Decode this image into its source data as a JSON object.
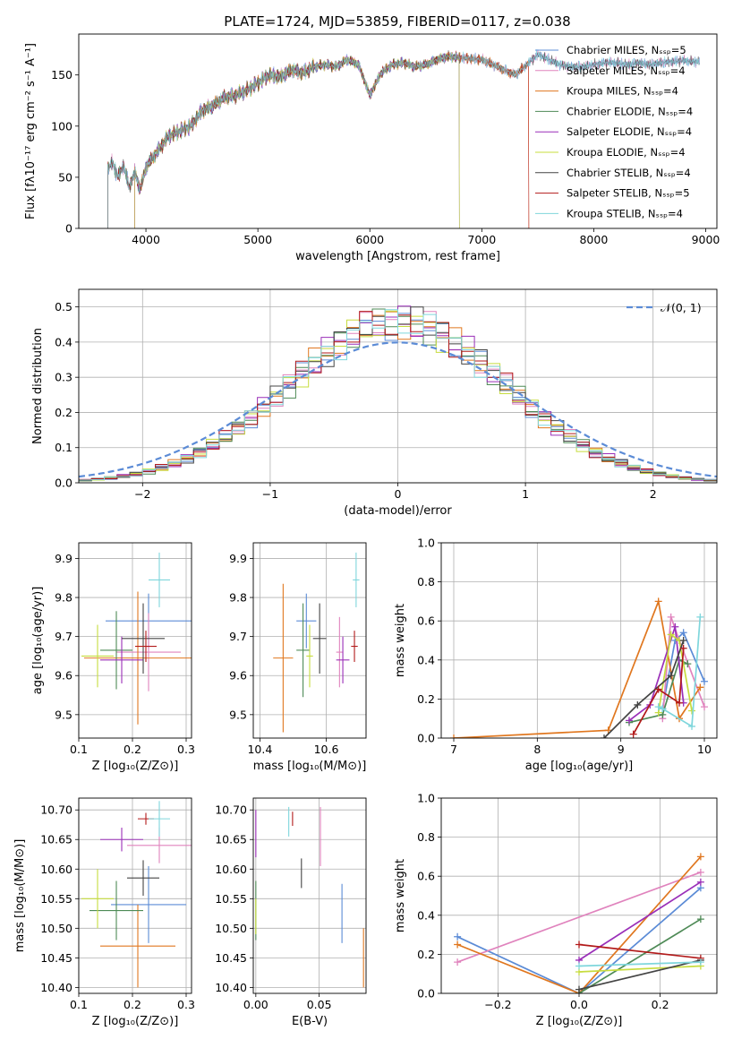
{
  "figure": {
    "title": "PLATE=1724, MJD=53859, FIBERID=0117, z=0.038"
  },
  "chart_data": [
    {
      "id": "spectrum",
      "type": "line",
      "xlabel": "wavelength [Angstrom, rest frame]",
      "ylabel": "Flux [fλ10⁻¹⁷ erg cm⁻² s⁻¹ A⁻¹]",
      "xlim": [
        3400,
        9100
      ],
      "ylim": [
        0,
        190
      ],
      "xticks": [
        4000,
        5000,
        6000,
        7000,
        8000,
        9000
      ],
      "yticks": [
        0,
        50,
        100,
        150
      ],
      "grid": false,
      "legend_position": "right",
      "template": {
        "x": [
          3650,
          3700,
          3750,
          3800,
          3850,
          3900,
          3950,
          4000,
          4100,
          4200,
          4300,
          4400,
          4500,
          4600,
          4700,
          4800,
          4900,
          5000,
          5100,
          5200,
          5300,
          5400,
          5500,
          5600,
          5700,
          5800,
          5900,
          6000,
          6100,
          6200,
          6300,
          6400,
          6500,
          6600,
          6700,
          6800,
          6900,
          7000,
          7100,
          7200,
          7300,
          7400,
          7500,
          7600,
          7700,
          7800,
          7900,
          8000,
          8100,
          8200,
          8300,
          8400,
          8500,
          8600,
          8700,
          8800,
          8900
        ],
        "y": [
          55,
          65,
          50,
          62,
          40,
          55,
          38,
          60,
          75,
          90,
          95,
          100,
          115,
          120,
          128,
          130,
          135,
          142,
          150,
          148,
          155,
          152,
          158,
          160,
          158,
          165,
          160,
          130,
          152,
          160,
          162,
          158,
          160,
          165,
          168,
          167,
          166,
          165,
          160,
          155,
          150,
          160,
          170,
          165,
          160,
          158,
          158,
          160,
          162,
          162,
          160,
          162,
          160,
          162,
          163,
          164,
          163
        ]
      },
      "series": [
        {
          "name": "Chabrier MILES, N_SSP=5",
          "color": "#5b8bd6",
          "x_start": 3660,
          "x_end": 8950
        },
        {
          "name": "Salpeter MILES, N_SSP=4",
          "color": "#e083bd",
          "x_start": 3660,
          "x_end": 8950
        },
        {
          "name": "Kroupa MILES, N_SSP=4",
          "color": "#e0771f",
          "x_start": 3900,
          "x_end": 7420
        },
        {
          "name": "Chabrier ELODIE, N_SSP=4",
          "color": "#4e8a56",
          "x_start": 3660,
          "x_end": 6800
        },
        {
          "name": "Salpeter ELODIE, N_SSP=4",
          "color": "#9a2fb8",
          "x_start": 3900,
          "x_end": 6800
        },
        {
          "name": "Kroupa ELODIE, N_SSP=4",
          "color": "#c7dc3e",
          "x_start": 3900,
          "x_end": 6800
        },
        {
          "name": "Chabrier STELIB, N_SSP=4",
          "color": "#444444",
          "x_start": 3660,
          "x_end": 8950
        },
        {
          "name": "Salpeter STELIB, N_SSP=5",
          "color": "#b21a1a",
          "x_start": 3660,
          "x_end": 7420
        },
        {
          "name": "Kroupa STELIB, N_SSP=4",
          "color": "#7fd6dc",
          "x_start": 3660,
          "x_end": 8950
        }
      ]
    },
    {
      "id": "residual-hist",
      "type": "histogram",
      "xlabel": "(data-model)/error",
      "ylabel": "Normed distribution",
      "xlim": [
        -2.5,
        2.5
      ],
      "ylim": [
        0,
        0.55
      ],
      "xticks": [
        -2,
        -1,
        0,
        1,
        2
      ],
      "yticks": [
        0.0,
        0.1,
        0.2,
        0.3,
        0.4,
        0.5
      ],
      "grid": true,
      "legend_position": "top-right",
      "reference_curve": {
        "name": "𝒩(0, 1)",
        "mean": 0,
        "sigma": 1,
        "color": "#5b8bd6"
      },
      "bin_width": 0.1,
      "bin_start": -2.5,
      "series_colors": [
        "#5b8bd6",
        "#e083bd",
        "#e0771f",
        "#4e8a56",
        "#9a2fb8",
        "#c7dc3e",
        "#444444",
        "#b21a1a",
        "#7fd6dc"
      ]
    },
    {
      "id": "z-age",
      "type": "errorbar",
      "xlabel": "Z [log₁₀(Z/Z⊙)]",
      "ylabel": "age  [log₁₀(age/yr)]",
      "xlim": [
        0.1,
        0.31
      ],
      "ylim": [
        9.44,
        9.94
      ],
      "xticks": [
        0.1,
        0.2,
        0.3
      ],
      "yticks": [
        9.5,
        9.6,
        9.7,
        9.8,
        9.9
      ],
      "grid": true,
      "points": [
        {
          "color": "#5b8bd6",
          "x": 0.23,
          "xerr": 0.08,
          "y": 9.74,
          "yerr": 0.07
        },
        {
          "color": "#e083bd",
          "x": 0.23,
          "xerr": 0.06,
          "y": 9.66,
          "yerr": 0.1
        },
        {
          "color": "#e0771f",
          "x": 0.21,
          "xerr": 0.1,
          "y": 9.645,
          "yerr": 0.17
        },
        {
          "color": "#4e8a56",
          "x": 0.17,
          "xerr": 0.03,
          "y": 9.665,
          "yerr": 0.1
        },
        {
          "color": "#9a2fb8",
          "x": 0.18,
          "xerr": 0.04,
          "y": 9.64,
          "yerr": 0.06
        },
        {
          "color": "#c7dc3e",
          "x": 0.135,
          "xerr": 0.03,
          "y": 9.65,
          "yerr": 0.08
        },
        {
          "color": "#444444",
          "x": 0.22,
          "xerr": 0.04,
          "y": 9.695,
          "yerr": 0.09
        },
        {
          "color": "#b21a1a",
          "x": 0.225,
          "xerr": 0.02,
          "y": 9.675,
          "yerr": 0.04
        },
        {
          "color": "#7fd6dc",
          "x": 0.25,
          "xerr": 0.02,
          "y": 9.845,
          "yerr": 0.07
        }
      ]
    },
    {
      "id": "mass-age",
      "type": "errorbar",
      "xlabel": "mass [log₁₀(M/M⊙)]",
      "ylabel": "",
      "xlim": [
        10.38,
        10.72
      ],
      "ylim": [
        9.44,
        9.94
      ],
      "xticks": [
        10.4,
        10.6
      ],
      "yticks": [
        9.5,
        9.6,
        9.7,
        9.8,
        9.9
      ],
      "grid": true,
      "points": [
        {
          "color": "#5b8bd6",
          "x": 10.54,
          "xerr": 0.03,
          "y": 9.74,
          "yerr": 0.07
        },
        {
          "color": "#e083bd",
          "x": 10.64,
          "xerr": 0.01,
          "y": 9.66,
          "yerr": 0.09
        },
        {
          "color": "#e0771f",
          "x": 10.47,
          "xerr": 0.03,
          "y": 9.645,
          "yerr": 0.19
        },
        {
          "color": "#4e8a56",
          "x": 10.53,
          "xerr": 0.02,
          "y": 9.665,
          "yerr": 0.12
        },
        {
          "color": "#9a2fb8",
          "x": 10.65,
          "xerr": 0.02,
          "y": 9.64,
          "yerr": 0.06
        },
        {
          "color": "#c7dc3e",
          "x": 10.55,
          "xerr": 0.01,
          "y": 9.65,
          "yerr": 0.08
        },
        {
          "color": "#444444",
          "x": 10.58,
          "xerr": 0.02,
          "y": 9.695,
          "yerr": 0.09
        },
        {
          "color": "#b21a1a",
          "x": 10.685,
          "xerr": 0.01,
          "y": 9.675,
          "yerr": 0.04
        },
        {
          "color": "#7fd6dc",
          "x": 10.69,
          "xerr": 0.01,
          "y": 9.845,
          "yerr": 0.07
        }
      ]
    },
    {
      "id": "age-weight",
      "type": "line",
      "xlabel": "age  [log₁₀(age/yr)]",
      "ylabel": "mass weight",
      "xlim": [
        6.85,
        10.15
      ],
      "ylim": [
        0,
        1.0
      ],
      "xticks": [
        7,
        8,
        9,
        10
      ],
      "yticks": [
        0.0,
        0.2,
        0.4,
        0.6,
        0.8,
        1.0
      ],
      "grid": true,
      "series": [
        {
          "color": "#5b8bd6",
          "x": [
            9.5,
            9.65,
            9.75,
            10.0
          ],
          "y": [
            0.15,
            0.5,
            0.54,
            0.29
          ]
        },
        {
          "color": "#e083bd",
          "x": [
            9.5,
            9.6,
            9.7,
            10.0
          ],
          "y": [
            0.1,
            0.62,
            0.5,
            0.16
          ]
        },
        {
          "color": "#e0771f",
          "x": [
            7.0,
            8.85,
            9.45,
            9.7,
            9.95
          ],
          "y": [
            0.0,
            0.04,
            0.7,
            0.1,
            0.26
          ]
        },
        {
          "color": "#4e8a56",
          "x": [
            9.1,
            9.5,
            9.7,
            9.8
          ],
          "y": [
            0.08,
            0.12,
            0.4,
            0.38
          ]
        },
        {
          "color": "#9a2fb8",
          "x": [
            9.1,
            9.35,
            9.65,
            9.75
          ],
          "y": [
            0.09,
            0.17,
            0.57,
            0.18
          ]
        },
        {
          "color": "#c7dc3e",
          "x": [
            9.45,
            9.6,
            9.7,
            9.85
          ],
          "y": [
            0.13,
            0.53,
            0.5,
            0.14
          ]
        },
        {
          "color": "#444444",
          "x": [
            8.8,
            9.2,
            9.6,
            9.75
          ],
          "y": [
            0.0,
            0.17,
            0.32,
            0.5
          ]
        },
        {
          "color": "#b21a1a",
          "x": [
            9.15,
            9.45,
            9.7,
            9.75
          ],
          "y": [
            0.02,
            0.25,
            0.18,
            0.46
          ]
        },
        {
          "color": "#7fd6dc",
          "x": [
            9.45,
            9.5,
            9.85,
            9.95
          ],
          "y": [
            0.16,
            0.15,
            0.06,
            0.62
          ]
        }
      ]
    },
    {
      "id": "z-mass",
      "type": "errorbar",
      "xlabel": "Z [log₁₀(Z/Z⊙)]",
      "ylabel": "mass [log₁₀(M/M⊙)]",
      "xlim": [
        0.1,
        0.31
      ],
      "ylim": [
        10.39,
        10.72
      ],
      "xticks": [
        0.1,
        0.2,
        0.3
      ],
      "yticks": [
        10.4,
        10.45,
        10.5,
        10.55,
        10.6,
        10.65,
        10.7
      ],
      "grid": true,
      "points": [
        {
          "color": "#5b8bd6",
          "x": 0.23,
          "xerr": 0.07,
          "y": 10.54,
          "yerr": 0.065
        },
        {
          "color": "#e083bd",
          "x": 0.25,
          "xerr": 0.06,
          "y": 10.64,
          "yerr": 0.03
        },
        {
          "color": "#e0771f",
          "x": 0.21,
          "xerr": 0.07,
          "y": 10.47,
          "yerr": 0.07
        },
        {
          "color": "#4e8a56",
          "x": 0.17,
          "xerr": 0.05,
          "y": 10.53,
          "yerr": 0.05
        },
        {
          "color": "#9a2fb8",
          "x": 0.18,
          "xerr": 0.04,
          "y": 10.65,
          "yerr": 0.02
        },
        {
          "color": "#c7dc3e",
          "x": 0.135,
          "xerr": 0.03,
          "y": 10.55,
          "yerr": 0.05
        },
        {
          "color": "#444444",
          "x": 0.22,
          "xerr": 0.03,
          "y": 10.585,
          "yerr": 0.03
        },
        {
          "color": "#b21a1a",
          "x": 0.225,
          "xerr": 0.015,
          "y": 10.685,
          "yerr": 0.01
        },
        {
          "color": "#7fd6dc",
          "x": 0.25,
          "xerr": 0.02,
          "y": 10.685,
          "yerr": 0.03
        }
      ]
    },
    {
      "id": "ebv-mass",
      "type": "errorbar",
      "xlabel": "E(B-V)",
      "ylabel": "",
      "xlim": [
        -0.002,
        0.087
      ],
      "ylim": [
        10.39,
        10.72
      ],
      "xticks": [
        0.0,
        0.05
      ],
      "yticks": [
        10.4,
        10.45,
        10.5,
        10.55,
        10.6,
        10.65,
        10.7
      ],
      "grid": true,
      "points": [
        {
          "color": "#5b8bd6",
          "x": 0.068,
          "y": 10.525,
          "yerr": 0.05
        },
        {
          "color": "#e083bd",
          "x": 0.051,
          "y": 10.655,
          "yerr": 0.05
        },
        {
          "color": "#e0771f",
          "x": 0.085,
          "y": 10.45,
          "yerr": 0.05
        },
        {
          "color": "#4e8a56",
          "x": 0.0,
          "y": 10.53,
          "yerr": 0.05
        },
        {
          "color": "#9a2fb8",
          "x": 0.0,
          "y": 10.66,
          "yerr": 0.04
        },
        {
          "color": "#c7dc3e",
          "x": 0.0,
          "y": 10.52,
          "yerr": 0.03
        },
        {
          "color": "#444444",
          "x": 0.036,
          "y": 10.593,
          "yerr": 0.025
        },
        {
          "color": "#b21a1a",
          "x": 0.029,
          "y": 10.685,
          "yerr": 0.012
        },
        {
          "color": "#7fd6dc",
          "x": 0.026,
          "y": 10.68,
          "yerr": 0.025
        }
      ]
    },
    {
      "id": "z-weight",
      "type": "line",
      "xlabel": "Z [log₁₀(Z/Z⊙)]",
      "ylabel": "mass weight",
      "xlim": [
        -0.34,
        0.34
      ],
      "ylim": [
        0,
        1.0
      ],
      "xticks": [
        -0.2,
        0.0,
        0.2
      ],
      "yticks": [
        0.0,
        0.2,
        0.4,
        0.6,
        0.8,
        1.0
      ],
      "grid": true,
      "series": [
        {
          "color": "#5b8bd6",
          "x": [
            -0.3,
            0.0,
            0.3
          ],
          "y": [
            0.29,
            0.0,
            0.54
          ]
        },
        {
          "color": "#e083bd",
          "x": [
            -0.3,
            0.3
          ],
          "y": [
            0.16,
            0.62
          ]
        },
        {
          "color": "#e0771f",
          "x": [
            -0.3,
            0.0,
            0.3
          ],
          "y": [
            0.25,
            0.0,
            0.7
          ]
        },
        {
          "color": "#4e8a56",
          "x": [
            0.0,
            0.3
          ],
          "y": [
            0.0,
            0.38
          ]
        },
        {
          "color": "#9a2fb8",
          "x": [
            0.0,
            0.3
          ],
          "y": [
            0.17,
            0.57
          ]
        },
        {
          "color": "#c7dc3e",
          "x": [
            0.0,
            0.3
          ],
          "y": [
            0.11,
            0.14
          ]
        },
        {
          "color": "#444444",
          "x": [
            0.0,
            0.3
          ],
          "y": [
            0.02,
            0.17
          ]
        },
        {
          "color": "#b21a1a",
          "x": [
            0.0,
            0.3
          ],
          "y": [
            0.25,
            0.18
          ]
        },
        {
          "color": "#7fd6dc",
          "x": [
            0.0,
            0.3
          ],
          "y": [
            0.14,
            0.16
          ]
        }
      ]
    }
  ]
}
